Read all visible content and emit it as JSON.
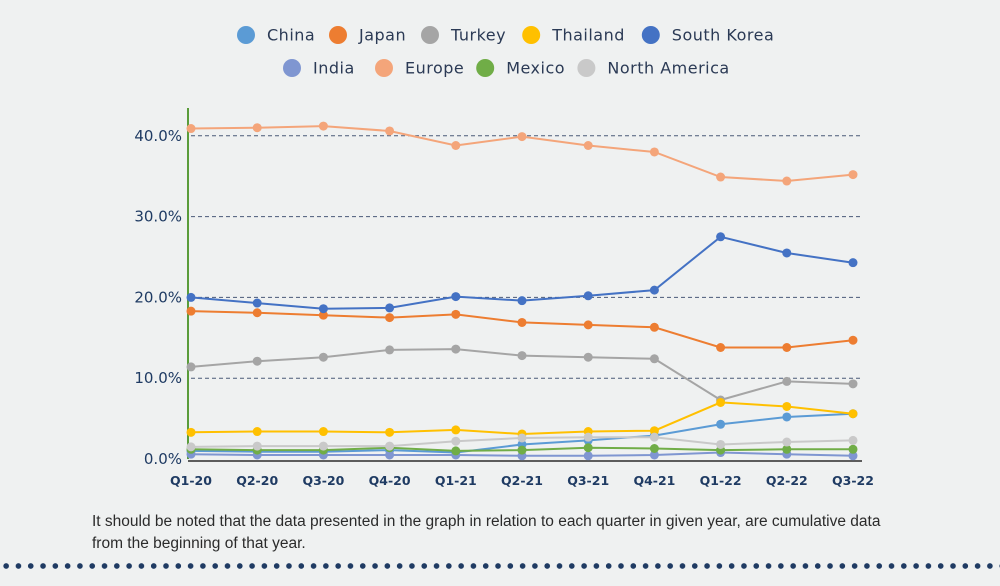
{
  "chart_data": {
    "type": "line",
    "categories": [
      "Q1-20",
      "Q2-20",
      "Q3-20",
      "Q4-20",
      "Q1-21",
      "Q2-21",
      "Q3-21",
      "Q4-21",
      "Q1-22",
      "Q2-22",
      "Q3-22"
    ],
    "ylim": [
      0,
      44
    ],
    "yticks": [
      0,
      10,
      20,
      30,
      40
    ],
    "ytick_labels": [
      "0.0%",
      "10.0%",
      "20.0%",
      "30.0%",
      "40.0%"
    ],
    "grid": "dashed horizontal at 10.0%, 20.0%, 30.0%, 40.0%",
    "legend_position": "top-center",
    "series": [
      {
        "name": "China",
        "color": "#5b9bd5",
        "values": [
          1.0,
          0.9,
          0.9,
          1.1,
          0.8,
          1.8,
          2.3,
          2.9,
          4.3,
          5.2,
          5.6
        ]
      },
      {
        "name": "Japan",
        "color": "#ed7d31",
        "values": [
          18.3,
          18.1,
          17.8,
          17.5,
          17.9,
          16.9,
          16.6,
          16.3,
          13.8,
          13.8,
          14.7
        ]
      },
      {
        "name": "Turkey",
        "color": "#a5a5a5",
        "values": [
          11.4,
          12.1,
          12.6,
          13.5,
          13.6,
          12.8,
          12.6,
          12.4,
          7.3,
          9.6,
          9.3
        ]
      },
      {
        "name": "Thailand",
        "color": "#ffc000",
        "values": [
          3.3,
          3.4,
          3.4,
          3.3,
          3.6,
          3.1,
          3.4,
          3.5,
          7.0,
          6.5,
          5.6
        ]
      },
      {
        "name": "South Korea",
        "color": "#4472c4",
        "values": [
          20.0,
          19.3,
          18.6,
          18.7,
          20.1,
          19.6,
          20.2,
          20.9,
          27.5,
          25.5,
          24.3
        ]
      },
      {
        "name": "India",
        "color": "#7f96d1",
        "values": [
          0.6,
          0.5,
          0.5,
          0.5,
          0.5,
          0.4,
          0.4,
          0.5,
          0.8,
          0.6,
          0.4
        ]
      },
      {
        "name": "Europe",
        "color": "#f4a57a",
        "values": [
          40.9,
          41.0,
          41.2,
          40.6,
          38.8,
          39.9,
          38.8,
          38.0,
          34.9,
          34.4,
          35.2
        ]
      },
      {
        "name": "Mexico",
        "color": "#70ad47",
        "values": [
          1.2,
          1.1,
          1.1,
          1.4,
          1.0,
          1.1,
          1.4,
          1.3,
          1.1,
          1.2,
          1.2
        ]
      },
      {
        "name": "North America",
        "color": "#c9c9c9",
        "values": [
          1.5,
          1.6,
          1.6,
          1.6,
          2.2,
          2.6,
          2.7,
          2.7,
          1.8,
          2.1,
          2.3
        ]
      }
    ]
  },
  "note": "It should be noted that the data presented in the graph in relation to each quarter in given year, are cumulative data from the beginning of that year."
}
